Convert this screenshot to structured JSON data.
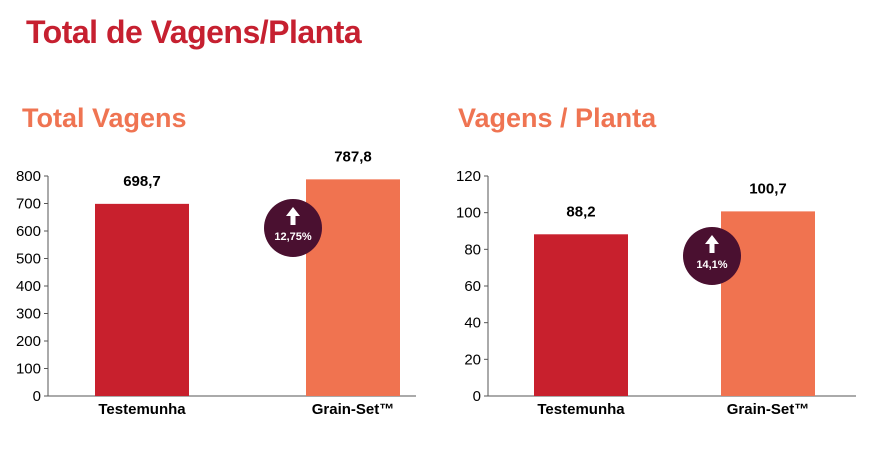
{
  "page": {
    "title": "Total de Vagens/Planta"
  },
  "colors": {
    "title": "#c62030",
    "subtitle": "#ef7452",
    "testemunha": "#c8202d",
    "grainset": "#f07350",
    "badge": "#4a1030"
  },
  "chart_data": [
    {
      "type": "bar",
      "title": "Total Vagens",
      "categories": [
        "Testemunha",
        "Grain-Set™"
      ],
      "values": [
        698.7,
        787.8
      ],
      "value_labels": [
        "698,7",
        "787,8"
      ],
      "ylim": [
        0,
        800
      ],
      "yticks": [
        0,
        100,
        200,
        300,
        400,
        500,
        600,
        700,
        800
      ],
      "xlabel": "",
      "ylabel": "",
      "grid": false,
      "badge": {
        "text": "12,75%",
        "icon": "arrow-up-icon"
      }
    },
    {
      "type": "bar",
      "title": "Vagens / Planta",
      "categories": [
        "Testemunha",
        "Grain-Set™"
      ],
      "values": [
        88.2,
        100.7
      ],
      "value_labels": [
        "88,2",
        "100,7"
      ],
      "ylim": [
        0,
        120
      ],
      "yticks": [
        0,
        20,
        40,
        60,
        80,
        100,
        120
      ],
      "xlabel": "",
      "ylabel": "",
      "grid": false,
      "badge": {
        "text": "14,1%",
        "icon": "arrow-up-icon"
      }
    }
  ]
}
